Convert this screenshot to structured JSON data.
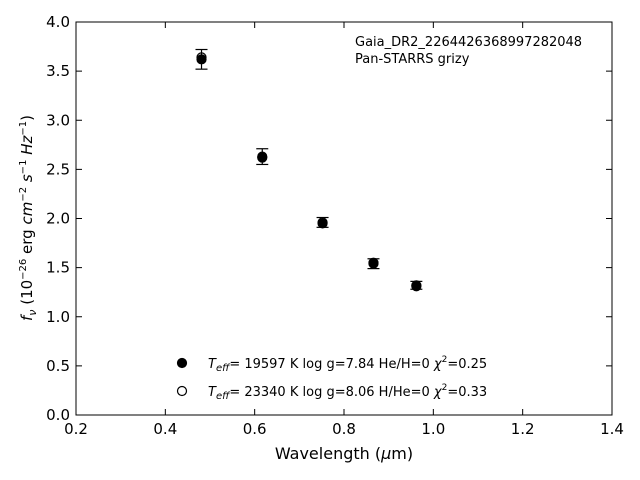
{
  "chart_data": {
    "type": "scatter",
    "title": "",
    "xlabel": "Wavelength (μm)",
    "ylabel": "f_ν (10^-26 erg cm^-2 s^-1 Hz^-1)",
    "xlim": [
      0.2,
      1.4
    ],
    "ylim": [
      0.0,
      4.0
    ],
    "xticks": [
      0.2,
      0.4,
      0.6,
      0.8,
      1.0,
      1.2,
      1.4
    ],
    "xtick_labels": [
      "0.2",
      "0.4",
      "0.6",
      "0.8",
      "1.0",
      "1.2",
      "1.4"
    ],
    "yticks": [
      0.0,
      0.5,
      1.0,
      1.5,
      2.0,
      2.5,
      3.0,
      3.5,
      4.0
    ],
    "ytick_labels": [
      "0.0",
      "0.5",
      "1.0",
      "1.5",
      "2.0",
      "2.5",
      "3.0",
      "3.5",
      "4.0"
    ],
    "grid": false,
    "legend_position": "lower-center",
    "annotations": {
      "object_name": "Gaia_DR2_2264426368997282048",
      "photometry": "Pan-STARRS grizy"
    },
    "series": [
      {
        "name": "T_eff= 19597 K  log g=7.84  He/H=0  χ²=0.25",
        "marker": "filled-circle",
        "color": "#000000",
        "points": [
          {
            "x": 0.481,
            "y": 3.62,
            "err": 0.1
          },
          {
            "x": 0.617,
            "y": 2.62,
            "err": 0.08
          },
          {
            "x": 0.752,
            "y": 1.95,
            "err": 0.06
          },
          {
            "x": 0.866,
            "y": 1.54,
            "err": 0.05
          },
          {
            "x": 0.962,
            "y": 1.31,
            "err": 0.04
          }
        ]
      },
      {
        "name": "T_eff= 23340 K  log g=8.06  H/He=0  χ²=0.33",
        "marker": "open-circle",
        "color": "#000000",
        "points": [
          {
            "x": 0.481,
            "y": 3.64
          },
          {
            "x": 0.617,
            "y": 2.63
          },
          {
            "x": 0.752,
            "y": 1.96
          },
          {
            "x": 0.866,
            "y": 1.55
          },
          {
            "x": 0.962,
            "y": 1.32
          }
        ]
      }
    ],
    "observed": {
      "name": "",
      "points": [
        {
          "x": 0.481,
          "y": 3.62,
          "err": 0.1
        },
        {
          "x": 0.617,
          "y": 2.63,
          "err": 0.08
        },
        {
          "x": 0.752,
          "y": 1.96,
          "err": 0.05
        },
        {
          "x": 0.866,
          "y": 1.54,
          "err": 0.05
        },
        {
          "x": 0.962,
          "y": 1.32,
          "err": 0.04
        }
      ]
    },
    "legend_entries": [
      {
        "teff_label": "T",
        "teff_sub": "eff",
        "rest": "= 19597 K  log g=7.84  He/H=0  ",
        "chi": "χ",
        "chi_sup": "2",
        "chi_val": "=0.25",
        "marker": "filled-circle"
      },
      {
        "teff_label": "T",
        "teff_sub": "eff",
        "rest": "= 23340 K  log g=8.06  H/He=0  ",
        "chi": "χ",
        "chi_sup": "2",
        "chi_val": "=0.33",
        "marker": "open-circle"
      }
    ]
  }
}
